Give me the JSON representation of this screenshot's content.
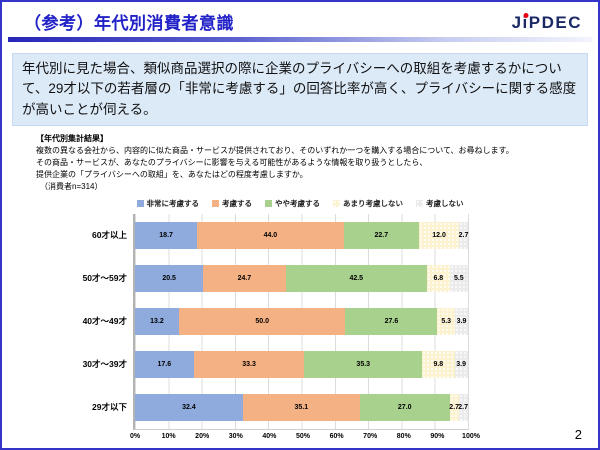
{
  "slide": {
    "title": "（参考）年代別消費者意識",
    "page_number": "2"
  },
  "logo": {
    "part1": "J",
    "part2": "i",
    "part3": "PDEC",
    "dot_color": "#e60012"
  },
  "summary": {
    "text": "年代別に見た場合、類似商品選択の際に企業のプライバシーへの取組を考慮するかについて、29才以下の若者層の「非常に考慮する」の回答比率が高く、プライバシーに関する感度が高いことが伺える。"
  },
  "survey_note": {
    "heading": "【年代別集計結果】",
    "lines": [
      "複数の異なる会社から、内容的に似た商品・サービスが提供されており、そのいずれか一つを購入する場合について、お尋ねします。",
      "その商品・サービスが、あなたのプライバシーに影響を与える可能性があるような情報を取り扱うとしたら、",
      "提供企業の「プライバシーへの取組」を、あなたはどの程度考慮しますか。"
    ],
    "sample": "（消費者n=314）"
  },
  "chart_data": {
    "type": "bar",
    "orientation": "horizontal-stacked",
    "title": "",
    "categories": [
      "60才以上",
      "50才～59才",
      "40才～49才",
      "30才～39才",
      "29才以下"
    ],
    "series": [
      {
        "name": "非常に考慮する",
        "color": "#8faadc",
        "pattern": false,
        "values": [
          18.7,
          20.5,
          13.2,
          17.6,
          32.4
        ]
      },
      {
        "name": "考慮する",
        "color": "#f4b183",
        "pattern": false,
        "values": [
          44.0,
          24.7,
          50.0,
          33.3,
          35.1
        ]
      },
      {
        "name": "やや考慮する",
        "color": "#a9d18e",
        "pattern": false,
        "values": [
          22.7,
          42.5,
          27.6,
          35.3,
          27.0
        ]
      },
      {
        "name": "あまり考慮しない",
        "color": "#fdf2d0",
        "pattern": true,
        "values": [
          12.0,
          6.8,
          5.3,
          9.8,
          2.7
        ]
      },
      {
        "name": "考慮しない",
        "color": "#ebebeb",
        "pattern": true,
        "values": [
          2.7,
          5.5,
          3.9,
          3.9,
          2.7
        ]
      }
    ],
    "x_ticks": [
      "0%",
      "10%",
      "20%",
      "30%",
      "40%",
      "50%",
      "60%",
      "70%",
      "80%",
      "90%",
      "100%"
    ],
    "xlim": [
      0,
      100
    ],
    "grid": true,
    "legend_position": "top",
    "value_label_format": "one-decimal"
  }
}
